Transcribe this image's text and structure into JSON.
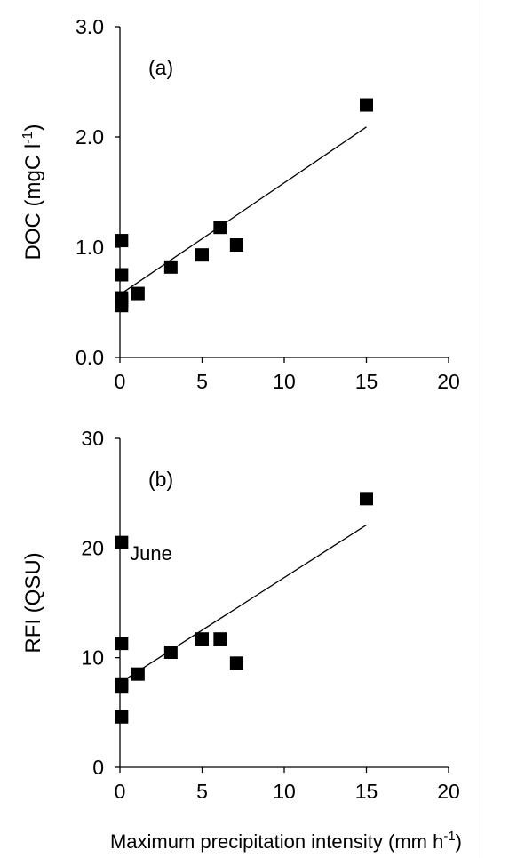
{
  "chart_data": [
    {
      "type": "scatter",
      "panel_label": "(a)",
      "ylabel_main": "DOC (mgC l",
      "ylabel_sup": "-1",
      "ylabel_close": ")",
      "xlim": [
        0,
        20
      ],
      "ylim": [
        0,
        3
      ],
      "x_ticks": [
        0,
        5,
        10,
        15,
        20
      ],
      "x_tick_labels": [
        "0",
        "5",
        "10",
        "15",
        "20"
      ],
      "y_ticks": [
        0,
        1,
        2,
        3
      ],
      "y_tick_labels": [
        "0.0",
        "1.0",
        "2.0",
        "3.0"
      ],
      "points": [
        {
          "x": 0.1,
          "y": 1.06
        },
        {
          "x": 0.1,
          "y": 0.75
        },
        {
          "x": 0.1,
          "y": 0.54
        },
        {
          "x": 0.1,
          "y": 0.51
        },
        {
          "x": 0.1,
          "y": 0.47
        },
        {
          "x": 1.1,
          "y": 0.58
        },
        {
          "x": 3.1,
          "y": 0.82
        },
        {
          "x": 5.0,
          "y": 0.93
        },
        {
          "x": 6.1,
          "y": 1.18
        },
        {
          "x": 7.1,
          "y": 1.02
        },
        {
          "x": 15.0,
          "y": 2.29
        }
      ],
      "trendline": {
        "x": [
          0.1,
          15.0
        ],
        "y": [
          0.58,
          2.09
        ]
      },
      "annotations": []
    },
    {
      "type": "scatter",
      "panel_label": "(b)",
      "ylabel_main": "RFI (QSU)",
      "xlim": [
        0,
        20
      ],
      "ylim": [
        0,
        30
      ],
      "x_ticks": [
        0,
        5,
        10,
        15,
        20
      ],
      "x_tick_labels": [
        "0",
        "5",
        "10",
        "15",
        "20"
      ],
      "y_ticks": [
        0,
        10,
        20,
        30
      ],
      "y_tick_labels": [
        "0",
        "10",
        "20",
        "30"
      ],
      "points": [
        {
          "x": 0.1,
          "y": 20.5
        },
        {
          "x": 0.1,
          "y": 11.3
        },
        {
          "x": 0.1,
          "y": 7.6
        },
        {
          "x": 0.1,
          "y": 7.4
        },
        {
          "x": 0.1,
          "y": 4.6
        },
        {
          "x": 1.1,
          "y": 8.5
        },
        {
          "x": 3.1,
          "y": 10.5
        },
        {
          "x": 5.0,
          "y": 11.7
        },
        {
          "x": 6.1,
          "y": 11.7
        },
        {
          "x": 7.1,
          "y": 9.5
        },
        {
          "x": 15.0,
          "y": 24.5
        }
      ],
      "trendline": {
        "x": [
          0.1,
          15.0
        ],
        "y": [
          7.8,
          22.1
        ]
      },
      "annotations": [
        {
          "text": "June",
          "x": 0.6,
          "y": 18.9
        }
      ]
    }
  ],
  "xlabel_main": "Maximum precipitation intensity (mm h",
  "xlabel_sup": "-1",
  "xlabel_close": ")"
}
